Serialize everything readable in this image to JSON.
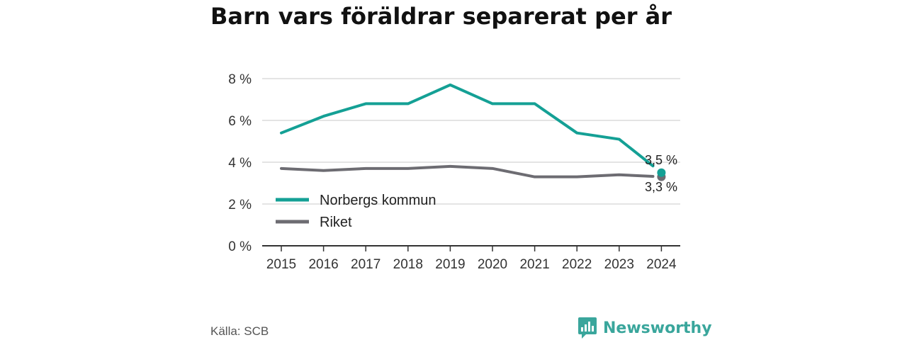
{
  "title": "Barn vars föräldrar separerat per år",
  "source": "Källa: SCB",
  "brand": {
    "name": "Newsworthy",
    "icon": "bar-chart-speech-bubble-icon",
    "color": "#3aa69c"
  },
  "chart_data": {
    "type": "line",
    "title": "Barn vars föräldrar separerat per år",
    "x": [
      2015,
      2016,
      2017,
      2018,
      2019,
      2020,
      2021,
      2022,
      2023,
      2024
    ],
    "yticks": [
      "0 %",
      "2 %",
      "4 %",
      "6 %",
      "8 %"
    ],
    "ylim": [
      0,
      8
    ],
    "grid": true,
    "legend": "center-left",
    "series": [
      {
        "name": "Norbergs kommun",
        "color": "#14a095",
        "values": [
          5.4,
          6.2,
          6.8,
          6.8,
          7.7,
          6.8,
          6.8,
          5.4,
          5.1,
          3.5
        ],
        "end_label": "3,5 %"
      },
      {
        "name": "Riket",
        "color": "#6d6c72",
        "values": [
          3.7,
          3.6,
          3.7,
          3.7,
          3.8,
          3.7,
          3.3,
          3.3,
          3.4,
          3.3
        ],
        "end_label": "3,3 %"
      }
    ]
  }
}
